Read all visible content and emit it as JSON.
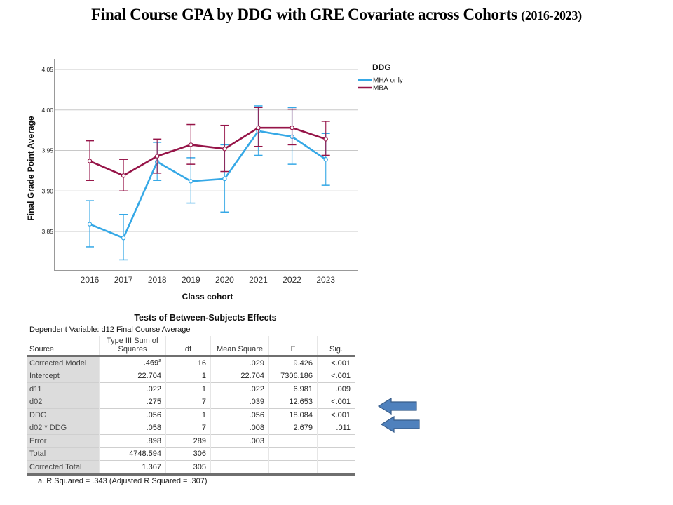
{
  "slide": {
    "title_main": "Final Course GPA by DDG with GRE Covariate across  Cohorts",
    "title_range": "(2016-2023)"
  },
  "chart_data": {
    "type": "line",
    "title": "",
    "xlabel": "Class cohort",
    "ylabel": "Final Grade Point Average",
    "x": [
      "2016",
      "2017",
      "2018",
      "2019",
      "2020",
      "2021",
      "2022",
      "2023"
    ],
    "ylim": [
      3.8,
      4.06
    ],
    "yticks": [
      "3.85",
      "3.90",
      "3.95",
      "4.00",
      "4.05"
    ],
    "grid": true,
    "legend": {
      "title": "DDG",
      "position": "right"
    },
    "error_bars": true,
    "series": [
      {
        "name": "MHA only",
        "color": "#35a8e6",
        "values": [
          3.859,
          3.842,
          3.936,
          3.912,
          3.915,
          3.974,
          3.967,
          3.939
        ],
        "lower": [
          3.831,
          3.815,
          3.913,
          3.885,
          3.874,
          3.944,
          3.933,
          3.907
        ],
        "upper": [
          3.888,
          3.871,
          3.96,
          3.941,
          3.957,
          4.005,
          4.003,
          3.971
        ]
      },
      {
        "name": "MBA",
        "color": "#961448",
        "values": [
          3.937,
          3.919,
          3.943,
          3.957,
          3.952,
          3.978,
          3.978,
          3.964
        ],
        "lower": [
          3.913,
          3.9,
          3.922,
          3.933,
          3.924,
          3.955,
          3.957,
          3.944
        ],
        "upper": [
          3.962,
          3.939,
          3.964,
          3.982,
          3.981,
          4.003,
          4.001,
          3.986
        ]
      }
    ]
  },
  "anova": {
    "title": "Tests of Between-Subjects Effects",
    "dependent_variable": "Dependent Variable:   d12 Final Course Average",
    "headers": [
      "Source",
      "Type III Sum of Squares",
      "df",
      "Mean Square",
      "F",
      "Sig."
    ],
    "rows": [
      {
        "source": "Corrected Model",
        "ss": ".469",
        "ss_sup": "a",
        "df": "16",
        "ms": ".029",
        "f": "9.426",
        "sig": "<.001"
      },
      {
        "source": "Intercept",
        "ss": "22.704",
        "ss_sup": "",
        "df": "1",
        "ms": "22.704",
        "f": "7306.186",
        "sig": "<.001"
      },
      {
        "source": "d11",
        "ss": ".022",
        "ss_sup": "",
        "df": "1",
        "ms": ".022",
        "f": "6.981",
        "sig": ".009"
      },
      {
        "source": "d02",
        "ss": ".275",
        "ss_sup": "",
        "df": "7",
        "ms": ".039",
        "f": "12.653",
        "sig": "<.001"
      },
      {
        "source": "DDG",
        "ss": ".056",
        "ss_sup": "",
        "df": "1",
        "ms": ".056",
        "f": "18.084",
        "sig": "<.001"
      },
      {
        "source": "d02 * DDG",
        "ss": ".058",
        "ss_sup": "",
        "df": "7",
        "ms": ".008",
        "f": "2.679",
        "sig": ".011"
      },
      {
        "source": "Error",
        "ss": ".898",
        "ss_sup": "",
        "df": "289",
        "ms": ".003",
        "f": "",
        "sig": ""
      },
      {
        "source": "Total",
        "ss": "4748.594",
        "ss_sup": "",
        "df": "306",
        "ms": "",
        "f": "",
        "sig": ""
      },
      {
        "source": "Corrected Total",
        "ss": "1.367",
        "ss_sup": "",
        "df": "305",
        "ms": "",
        "f": "",
        "sig": ""
      }
    ],
    "footnote": "a. R Squared = .343 (Adjusted R Squared = .307)"
  },
  "annotations": {
    "arrow_color": "#4a7ebb",
    "arrows": [
      {
        "points_to_row": "d02"
      },
      {
        "points_to_row": "DDG"
      }
    ]
  }
}
